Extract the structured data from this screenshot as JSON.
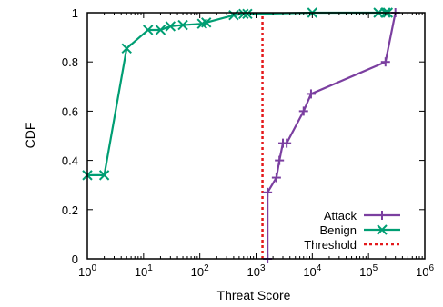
{
  "chart_data": {
    "type": "line",
    "xlabel": "Threat Score",
    "ylabel": "CDF",
    "xscale": "log",
    "xlim": [
      1,
      1000000
    ],
    "ylim": [
      0,
      1
    ],
    "x_ticks": [
      {
        "value": 1,
        "base": "10",
        "exp": "0"
      },
      {
        "value": 10,
        "base": "10",
        "exp": "1"
      },
      {
        "value": 100,
        "base": "10",
        "exp": "2"
      },
      {
        "value": 1000,
        "base": "10",
        "exp": "3"
      },
      {
        "value": 10000,
        "base": "10",
        "exp": "4"
      },
      {
        "value": 100000,
        "base": "10",
        "exp": "5"
      },
      {
        "value": 1000000,
        "base": "10",
        "exp": "6"
      }
    ],
    "y_ticks": [
      "0",
      "0.2",
      "0.4",
      "0.6",
      "0.8",
      "1"
    ],
    "grid": false,
    "legend_position": "bottom-right",
    "series": [
      {
        "name": "Attack",
        "color": "#7b3fa0",
        "marker": "plus",
        "x": [
          1600,
          1600,
          2300,
          2600,
          3000,
          3500,
          7000,
          9500,
          200000,
          300000
        ],
        "y": [
          0,
          0.27,
          0.33,
          0.4,
          0.47,
          0.47,
          0.6,
          0.67,
          0.8,
          1.0
        ]
      },
      {
        "name": "Benign",
        "color": "#009e73",
        "marker": "x",
        "x": [
          1,
          2,
          5,
          12,
          20,
          30,
          50,
          110,
          130,
          400,
          600,
          700,
          10000,
          150000,
          200000,
          220000
        ],
        "y": [
          0.34,
          0.34,
          0.855,
          0.93,
          0.93,
          0.945,
          0.95,
          0.955,
          0.96,
          0.99,
          0.995,
          0.995,
          1.0,
          1.0,
          1.0,
          1.0
        ]
      }
    ],
    "threshold": {
      "name": "Threshold",
      "color": "#e41a1c",
      "x": 1300
    }
  }
}
